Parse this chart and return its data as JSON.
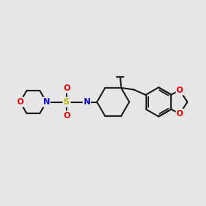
{
  "bg_color": "#e6e6e6",
  "bond_color": "#1a1a1a",
  "N_color": "#0000ee",
  "O_color": "#ee0000",
  "S_color": "#bbbb00",
  "line_width": 1.6,
  "figsize": [
    3.0,
    3.0
  ],
  "dpi": 100,
  "xlim": [
    0,
    10
  ],
  "ylim": [
    1,
    9
  ]
}
